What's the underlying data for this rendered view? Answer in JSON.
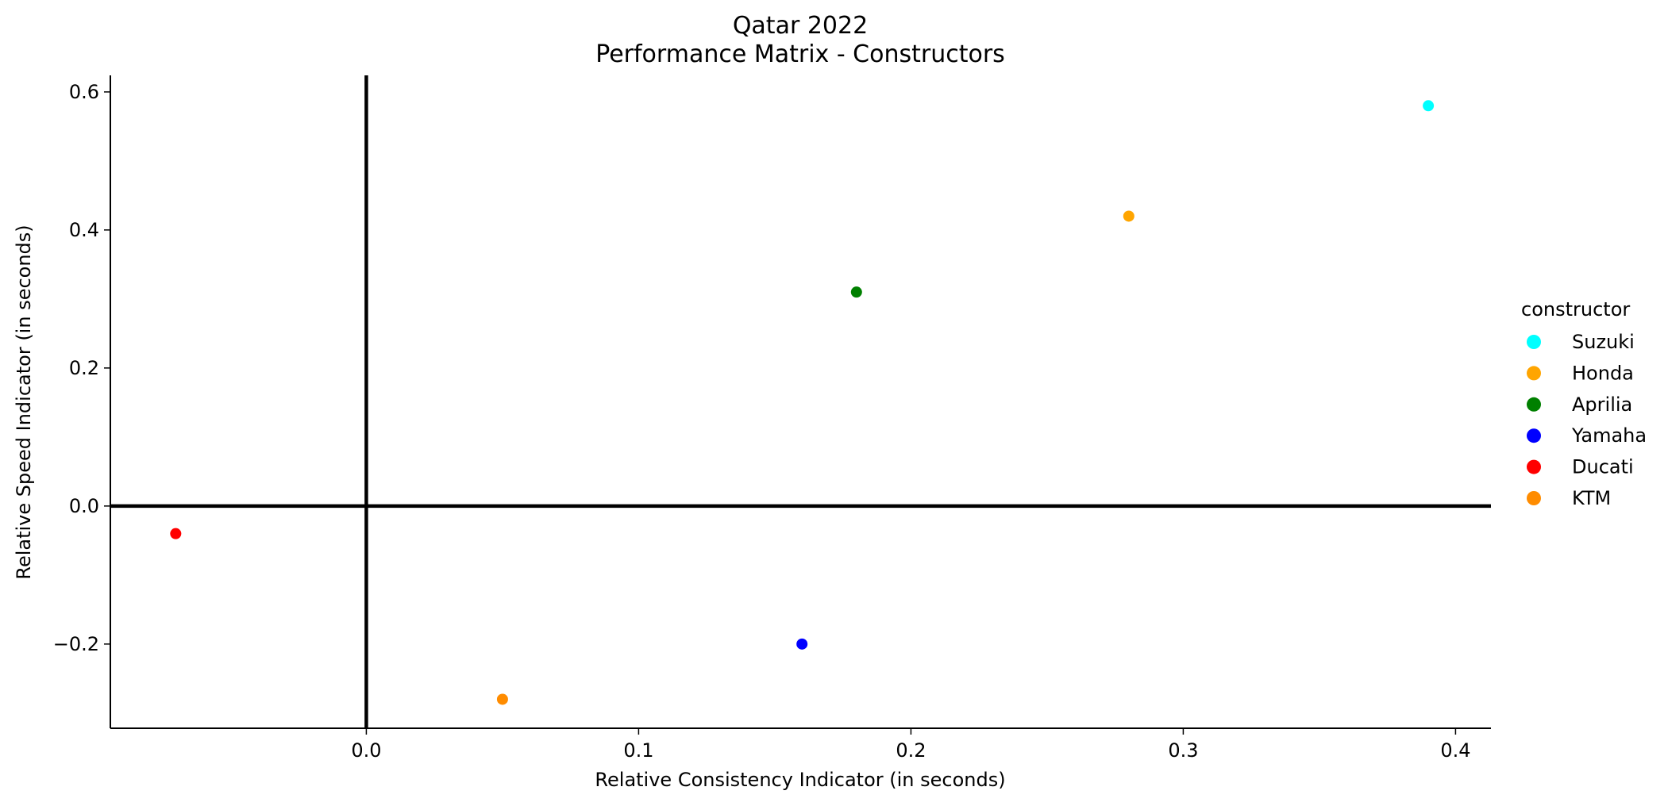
{
  "chart_data": {
    "type": "scatter",
    "title": "Qatar 2022",
    "subtitle": "Performance Matrix - Constructors",
    "xlabel": "Relative Consistency Indicator (in seconds)",
    "ylabel": "Relative Speed Indicator (in seconds)",
    "xlim": [
      -0.094,
      0.413
    ],
    "ylim": [
      -0.322,
      0.624
    ],
    "xticks": [
      0.0,
      0.1,
      0.2,
      0.3,
      0.4
    ],
    "xtick_labels": [
      "0.0",
      "0.1",
      "0.2",
      "0.3",
      "0.4"
    ],
    "yticks": [
      0.6,
      0.4,
      0.2,
      0.0,
      -0.2
    ],
    "ytick_labels": [
      "0.6",
      "0.4",
      "0.2",
      "0.0",
      "−0.2"
    ],
    "reference_lines": {
      "x": 0.0,
      "y": 0.0
    },
    "grid": false,
    "legend": {
      "title": "constructor",
      "placement": "right, outside plot"
    },
    "series": [
      {
        "name": "Suzuki",
        "color": "#00ffff",
        "x": [
          0.39
        ],
        "y": [
          0.58
        ]
      },
      {
        "name": "Honda",
        "color": "#ffa500",
        "x": [
          0.28
        ],
        "y": [
          0.42
        ]
      },
      {
        "name": "Aprilia",
        "color": "#008000",
        "x": [
          0.18
        ],
        "y": [
          0.31
        ]
      },
      {
        "name": "Yamaha",
        "color": "#0000ff",
        "x": [
          0.16
        ],
        "y": [
          -0.2
        ]
      },
      {
        "name": "Ducati",
        "color": "#ff0000",
        "x": [
          -0.07
        ],
        "y": [
          -0.04
        ]
      },
      {
        "name": "KTM",
        "color": "#ff8c00",
        "x": [
          0.05
        ],
        "y": [
          -0.28
        ]
      }
    ]
  }
}
